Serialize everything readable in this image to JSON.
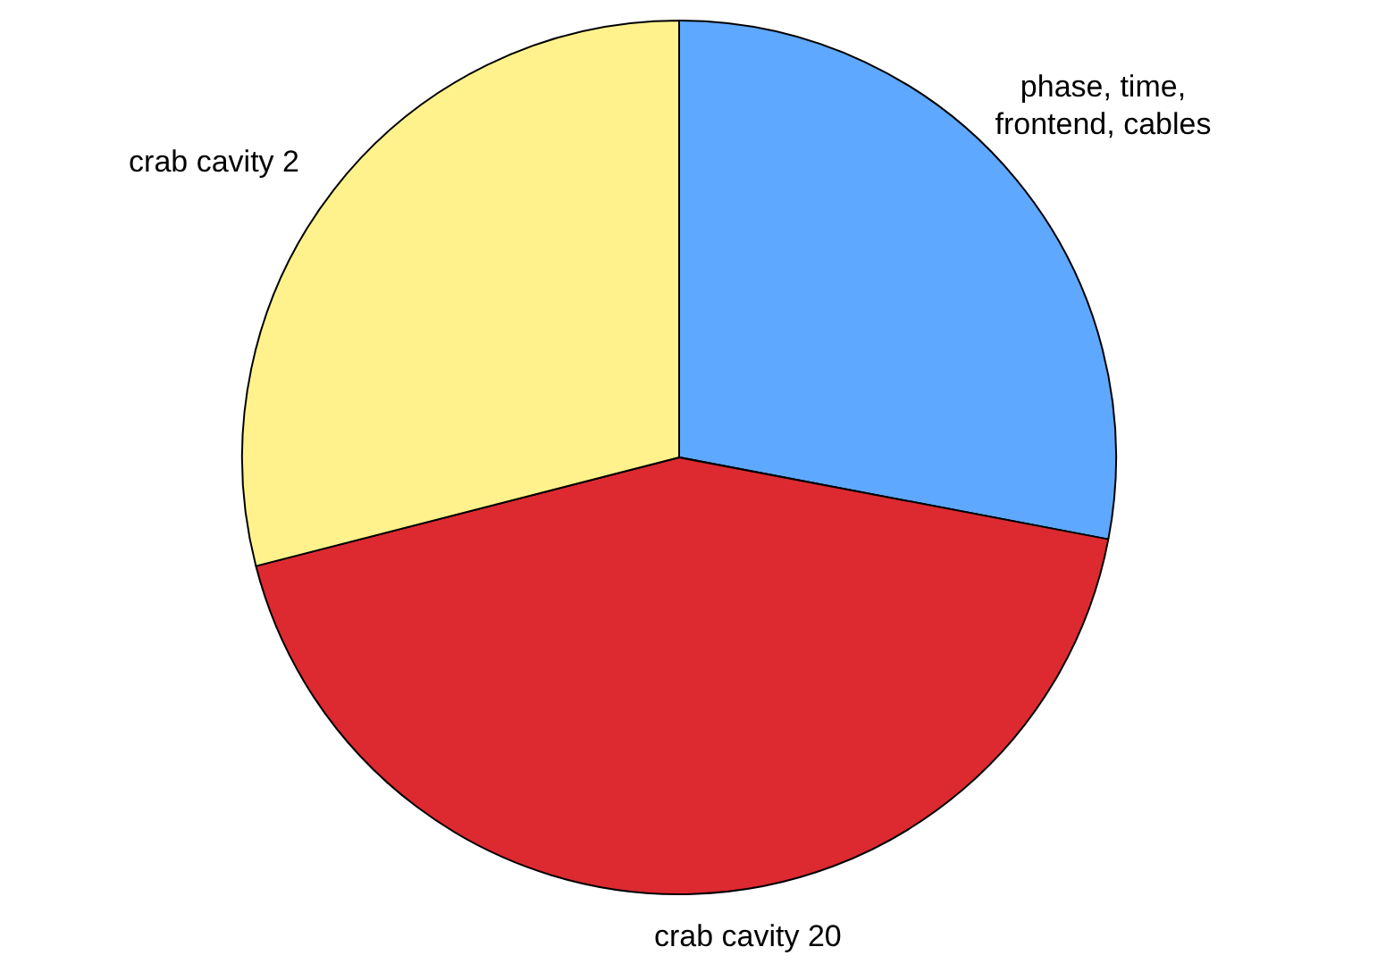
{
  "chart_data": {
    "type": "pie",
    "categories": [
      "phase, time, frontend, cables",
      "crab cavity 20",
      "crab cavity 2"
    ],
    "values": [
      28,
      43,
      29
    ],
    "colors": [
      "#5ea8ff",
      "#dc2a30",
      "#fff28c"
    ],
    "legend": false
  }
}
